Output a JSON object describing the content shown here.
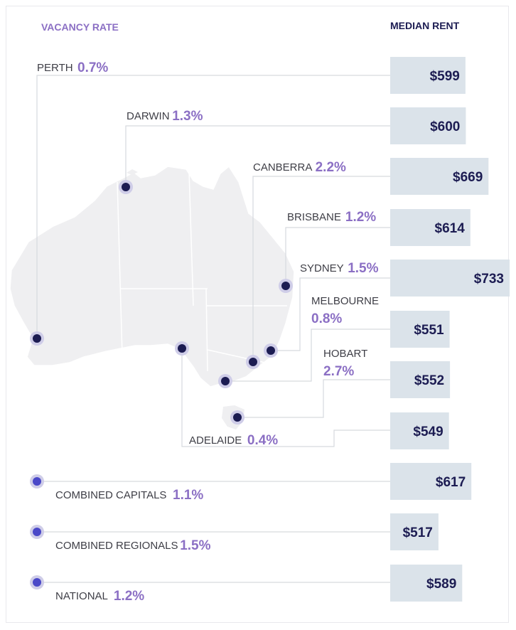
{
  "colors": {
    "vacancy_accent": "#8b6fc4",
    "rent_text": "#1c1c52",
    "bar_fill": "#dbe3ea",
    "connector": "#d6d9de",
    "map_fill": "#efeff1",
    "map_border": "#ffffff",
    "city_dot": "#1c1c52",
    "summary_dot": "#4a48c8",
    "dot_halo": "#cfcde8"
  },
  "chart_data": {
    "type": "table",
    "title": "",
    "headers": {
      "vacancy": "VACANCY RATE",
      "rent": "MEDIAN RENT"
    },
    "rent_scale_max": 733,
    "rows": [
      {
        "id": "perth",
        "label": "PERTH",
        "vacancy": "0.7%",
        "rent": "$599",
        "rent_value": 599,
        "group": "city"
      },
      {
        "id": "darwin",
        "label": "DARWIN",
        "vacancy": "1.3%",
        "rent": "$600",
        "rent_value": 600,
        "group": "city"
      },
      {
        "id": "canberra",
        "label": "CANBERRA",
        "vacancy": "2.2%",
        "rent": "$669",
        "rent_value": 669,
        "group": "city"
      },
      {
        "id": "brisbane",
        "label": "BRISBANE",
        "vacancy": "1.2%",
        "rent": "$614",
        "rent_value": 614,
        "group": "city"
      },
      {
        "id": "sydney",
        "label": "SYDNEY",
        "vacancy": "1.5%",
        "rent": "$733",
        "rent_value": 733,
        "group": "city"
      },
      {
        "id": "melbourne",
        "label": "MELBOURNE",
        "vacancy": "0.8%",
        "rent": "$551",
        "rent_value": 551,
        "group": "city"
      },
      {
        "id": "hobart",
        "label": "HOBART",
        "vacancy": "2.7%",
        "rent": "$552",
        "rent_value": 552,
        "group": "city"
      },
      {
        "id": "adelaide",
        "label": "ADELAIDE",
        "vacancy": "0.4%",
        "rent": "$549",
        "rent_value": 549,
        "group": "city"
      },
      {
        "id": "combined-capitals",
        "label": "COMBINED CAPITALS",
        "vacancy": "1.1%",
        "rent": "$617",
        "rent_value": 617,
        "group": "summary"
      },
      {
        "id": "combined-regionals",
        "label": "COMBINED REGIONALS",
        "vacancy": "1.5%",
        "rent": "$517",
        "rent_value": 517,
        "group": "summary"
      },
      {
        "id": "national",
        "label": "NATIONAL",
        "vacancy": "1.2%",
        "rent": "$589",
        "rent_value": 589,
        "group": "summary"
      }
    ]
  }
}
